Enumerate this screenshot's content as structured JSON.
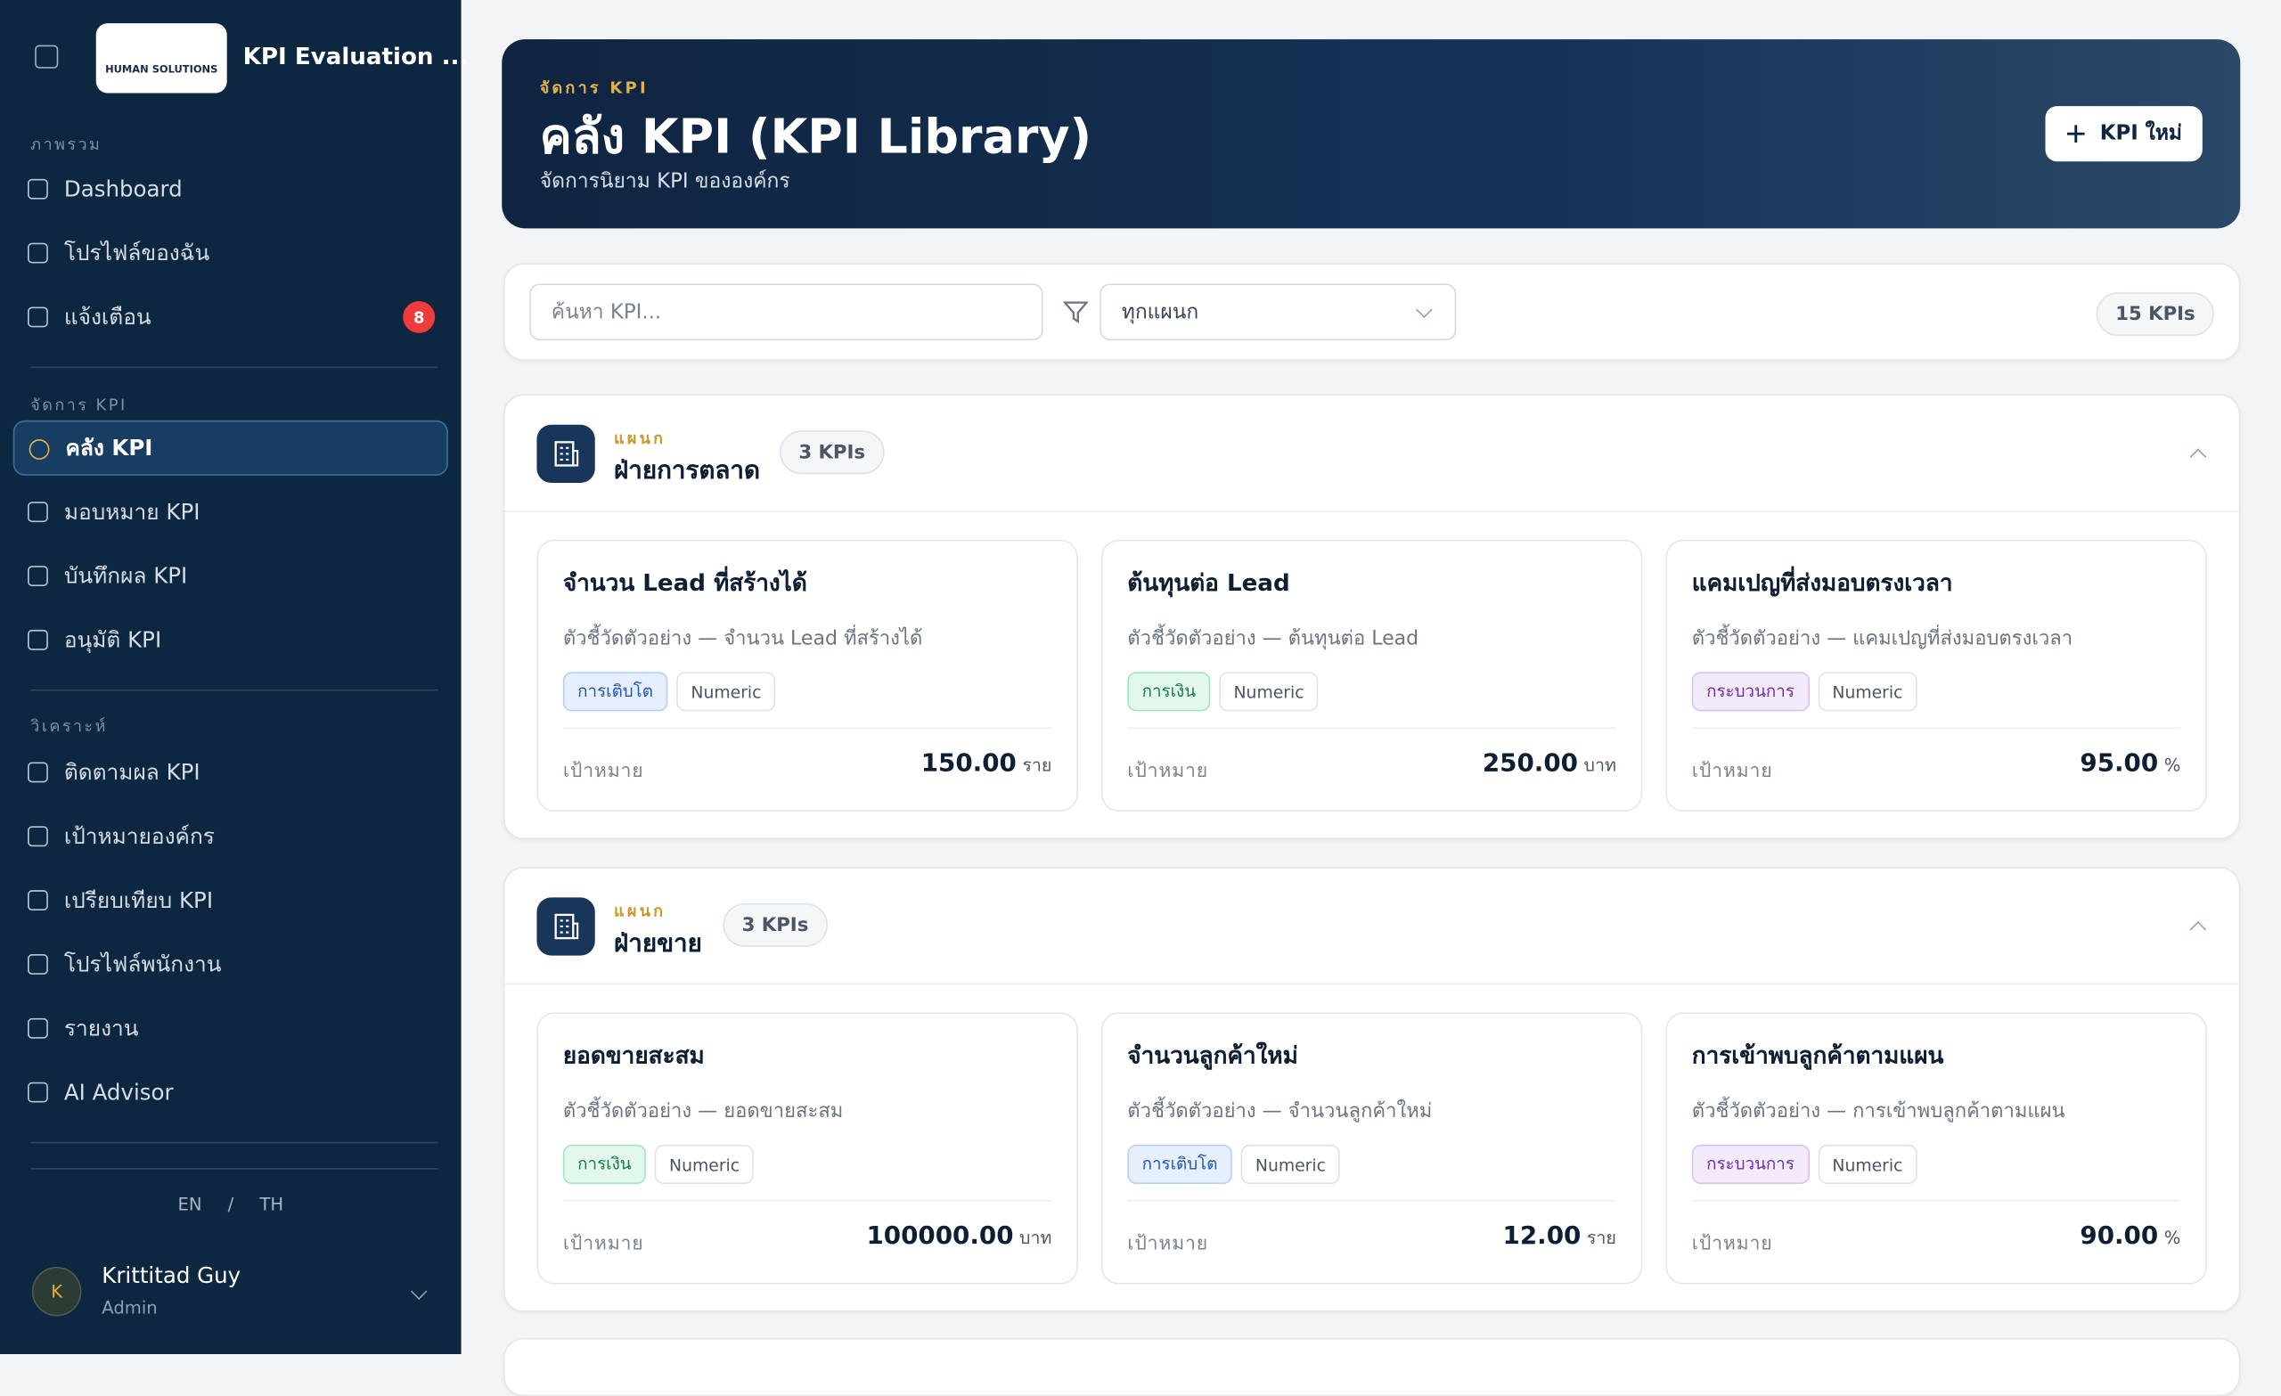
{
  "sidebar": {
    "brand": {
      "logo_text": "HUMAN SOLUTIONS",
      "title": "KPI Evaluation ..."
    },
    "sections": [
      {
        "heading": "ภาพรวม",
        "items": [
          {
            "label": "Dashboard"
          },
          {
            "label": "โปรไฟล์ของฉัน"
          },
          {
            "label": "แจ้งเตือน",
            "badge": "8"
          }
        ]
      },
      {
        "heading": "จัดการ KPI",
        "items": [
          {
            "label": "คลัง KPI",
            "active": true
          },
          {
            "label": "มอบหมาย KPI"
          },
          {
            "label": "บันทึกผล KPI"
          },
          {
            "label": "อนุมัติ KPI"
          }
        ]
      },
      {
        "heading": "วิเคราะห์",
        "items": [
          {
            "label": "ติดตามผล KPI"
          },
          {
            "label": "เป้าหมายองค์กร"
          },
          {
            "label": "เปรียบเทียบ KPI"
          },
          {
            "label": "โปรไฟล์พนักงาน"
          },
          {
            "label": "รายงาน"
          },
          {
            "label": "AI Advisor"
          }
        ]
      }
    ],
    "languages": [
      "EN",
      "TH"
    ],
    "language_separator": "/",
    "user": {
      "initial": "K",
      "name": "Krittitad Guy",
      "role": "Admin"
    }
  },
  "header": {
    "eyebrow": "จัดการ KPI",
    "title": "คลัง KPI (KPI Library)",
    "subtitle": "จัดการนิยาม KPI ขององค์กร",
    "button": "KPI ใหม่"
  },
  "filters": {
    "search_placeholder": "ค้นหา KPI...",
    "department": "ทุกแผนก",
    "count": "15 KPIs"
  },
  "groups": [
    {
      "eyebrow": "แผนก",
      "name": "ฝ่ายการตลาด",
      "count": "3 KPIs",
      "kpis": [
        {
          "title": "จำนวน Lead ที่สร้างได้",
          "description": "ตัวชี้วัดตัวอย่าง — จำนวน Lead ที่สร้างได้",
          "tags": [
            {
              "label": "การเติบโต",
              "tone": "blue"
            },
            {
              "label": "Numeric",
              "tone": "plain"
            }
          ],
          "target_label": "เป้าหมาย",
          "target": "150.00",
          "unit": "ราย"
        },
        {
          "title": "ต้นทุนต่อ Lead",
          "description": "ตัวชี้วัดตัวอย่าง — ต้นทุนต่อ Lead",
          "tags": [
            {
              "label": "การเงิน",
              "tone": "green"
            },
            {
              "label": "Numeric",
              "tone": "plain"
            }
          ],
          "target_label": "เป้าหมาย",
          "target": "250.00",
          "unit": "บาท"
        },
        {
          "title": "แคมเปญที่ส่งมอบตรงเวลา",
          "description": "ตัวชี้วัดตัวอย่าง — แคมเปญที่ส่งมอบตรงเวลา",
          "tags": [
            {
              "label": "กระบวนการ",
              "tone": "purple"
            },
            {
              "label": "Numeric",
              "tone": "plain"
            }
          ],
          "target_label": "เป้าหมาย",
          "target": "95.00",
          "unit": "%"
        }
      ]
    },
    {
      "eyebrow": "แผนก",
      "name": "ฝ่ายขาย",
      "count": "3 KPIs",
      "kpis": [
        {
          "title": "ยอดขายสะสม",
          "description": "ตัวชี้วัดตัวอย่าง — ยอดขายสะสม",
          "tags": [
            {
              "label": "การเงิน",
              "tone": "green"
            },
            {
              "label": "Numeric",
              "tone": "plain"
            }
          ],
          "target_label": "เป้าหมาย",
          "target": "100000.00",
          "unit": "บาท"
        },
        {
          "title": "จำนวนลูกค้าใหม่",
          "description": "ตัวชี้วัดตัวอย่าง — จำนวนลูกค้าใหม่",
          "tags": [
            {
              "label": "การเติบโต",
              "tone": "blue"
            },
            {
              "label": "Numeric",
              "tone": "plain"
            }
          ],
          "target_label": "เป้าหมาย",
          "target": "12.00",
          "unit": "ราย"
        },
        {
          "title": "การเข้าพบลูกค้าตามแผน",
          "description": "ตัวชี้วัดตัวอย่าง — การเข้าพบลูกค้าตามแผน",
          "tags": [
            {
              "label": "กระบวนการ",
              "tone": "purple"
            },
            {
              "label": "Numeric",
              "tone": "plain"
            }
          ],
          "target_label": "เป้าหมาย",
          "target": "90.00",
          "unit": "%"
        }
      ]
    }
  ]
}
